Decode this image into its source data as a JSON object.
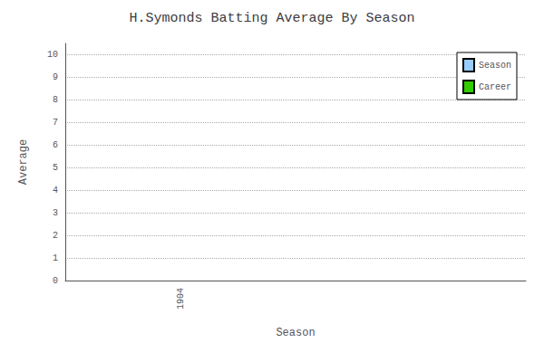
{
  "chart_data": {
    "type": "bar",
    "title": "H.Symonds Batting Average By Season",
    "xlabel": "Season",
    "ylabel": "Average",
    "x": [],
    "series": [
      {
        "name": "Season",
        "color": "#99CCFF",
        "values": []
      },
      {
        "name": "Career",
        "color": "#33CC00",
        "values": []
      }
    ],
    "xlim": [
      1903.5,
      1905.5
    ],
    "xticks": [
      1904
    ],
    "ylim": [
      0,
      10.5
    ],
    "yticks": [
      0,
      1,
      2,
      3,
      4,
      5,
      6,
      7,
      8,
      9,
      10
    ],
    "grid": true,
    "legend": "upper right"
  }
}
